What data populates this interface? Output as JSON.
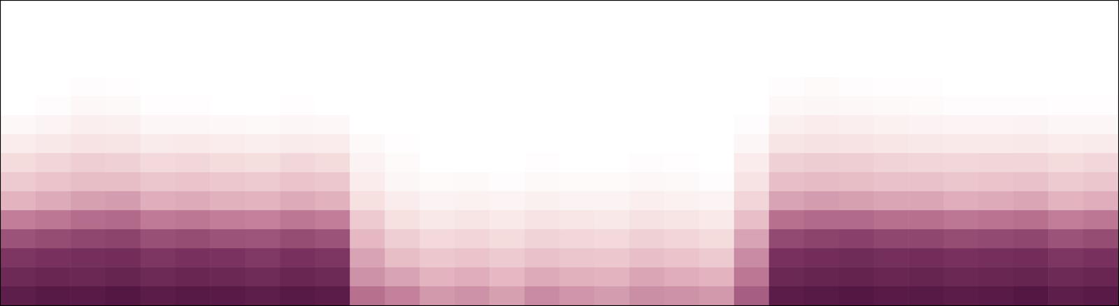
{
  "chart_data": {
    "type": "heatmap",
    "tick_labels": false,
    "zlim": [
      0,
      100
    ],
    "values": [
      [
        92,
        95,
        94,
        96,
        93,
        95,
        94,
        92,
        95,
        93,
        60,
        55,
        48,
        50,
        46,
        52,
        49,
        47,
        51,
        50,
        48,
        66,
        93,
        95,
        96,
        94,
        95,
        93,
        94,
        96,
        92,
        94
      ],
      [
        86,
        88,
        87,
        89,
        86,
        88,
        87,
        85,
        88,
        86,
        50,
        45,
        40,
        42,
        38,
        43,
        41,
        40,
        44,
        42,
        40,
        58,
        87,
        89,
        90,
        88,
        89,
        87,
        88,
        89,
        86,
        88
      ],
      [
        80,
        82,
        83,
        84,
        80,
        82,
        81,
        79,
        82,
        80,
        45,
        36,
        31,
        33,
        30,
        34,
        32,
        31,
        35,
        33,
        30,
        52,
        82,
        84,
        85,
        83,
        84,
        82,
        83,
        84,
        80,
        82
      ],
      [
        70,
        72,
        74,
        75,
        71,
        72,
        70,
        69,
        72,
        70,
        38,
        28,
        23,
        25,
        22,
        26,
        24,
        23,
        27,
        25,
        22,
        45,
        73,
        75,
        76,
        74,
        74,
        72,
        73,
        74,
        70,
        72
      ],
      [
        56,
        58,
        61,
        62,
        57,
        58,
        56,
        55,
        58,
        56,
        30,
        20,
        15,
        17,
        14,
        18,
        16,
        15,
        19,
        17,
        14,
        35,
        60,
        62,
        62,
        60,
        60,
        58,
        59,
        60,
        56,
        58
      ],
      [
        40,
        43,
        46,
        47,
        42,
        43,
        41,
        40,
        43,
        41,
        20,
        12,
        8,
        9,
        7,
        10,
        8,
        8,
        11,
        9,
        7,
        25,
        45,
        47,
        46,
        44,
        44,
        42,
        43,
        44,
        40,
        42
      ],
      [
        30,
        33,
        36,
        36,
        32,
        33,
        31,
        30,
        33,
        31,
        12,
        6,
        3,
        4,
        2,
        4,
        3,
        3,
        5,
        4,
        2,
        18,
        35,
        37,
        36,
        34,
        34,
        32,
        33,
        34,
        30,
        32
      ],
      [
        22,
        25,
        28,
        27,
        23,
        24,
        22,
        21,
        24,
        22,
        8,
        3,
        0,
        0,
        0,
        1,
        0,
        0,
        2,
        1,
        0,
        12,
        27,
        29,
        28,
        26,
        25,
        24,
        25,
        25,
        22,
        24
      ],
      [
        12,
        15,
        18,
        17,
        13,
        14,
        12,
        11,
        13,
        12,
        4,
        1,
        0,
        0,
        0,
        0,
        0,
        0,
        0,
        0,
        0,
        6,
        17,
        19,
        18,
        16,
        15,
        14,
        14,
        15,
        12,
        13
      ],
      [
        5,
        7,
        11,
        10,
        6,
        6,
        5,
        4,
        6,
        5,
        0,
        0,
        0,
        0,
        0,
        0,
        0,
        0,
        0,
        0,
        0,
        2,
        10,
        12,
        11,
        9,
        8,
        7,
        7,
        8,
        6,
        6
      ],
      [
        0,
        2,
        5,
        4,
        1,
        1,
        0,
        0,
        1,
        0,
        0,
        0,
        0,
        0,
        0,
        0,
        0,
        0,
        0,
        0,
        0,
        0,
        5,
        6,
        5,
        4,
        3,
        2,
        2,
        2,
        1,
        1
      ],
      [
        0,
        0,
        2,
        1,
        0,
        0,
        0,
        0,
        0,
        0,
        0,
        0,
        0,
        0,
        0,
        0,
        0,
        0,
        0,
        0,
        0,
        0,
        2,
        3,
        2,
        1,
        1,
        0,
        0,
        0,
        0,
        0
      ],
      [
        0,
        0,
        0,
        0,
        0,
        0,
        0,
        0,
        0,
        0,
        0,
        0,
        0,
        0,
        0,
        0,
        0,
        0,
        0,
        0,
        0,
        0,
        0,
        0,
        0,
        0,
        0,
        0,
        0,
        0,
        0,
        0
      ],
      [
        0,
        0,
        0,
        0,
        0,
        0,
        0,
        0,
        0,
        0,
        0,
        0,
        0,
        0,
        0,
        0,
        0,
        0,
        0,
        0,
        0,
        0,
        0,
        0,
        0,
        0,
        0,
        0,
        0,
        0,
        0,
        0
      ],
      [
        0,
        0,
        0,
        0,
        0,
        0,
        0,
        0,
        0,
        0,
        0,
        0,
        0,
        0,
        0,
        0,
        0,
        0,
        0,
        0,
        0,
        0,
        0,
        0,
        0,
        0,
        0,
        0,
        0,
        0,
        0,
        0
      ],
      [
        0,
        0,
        0,
        0,
        0,
        0,
        0,
        0,
        0,
        0,
        0,
        0,
        0,
        0,
        0,
        0,
        0,
        0,
        0,
        0,
        0,
        0,
        0,
        0,
        0,
        0,
        0,
        0,
        0,
        0,
        0,
        0
      ]
    ]
  }
}
